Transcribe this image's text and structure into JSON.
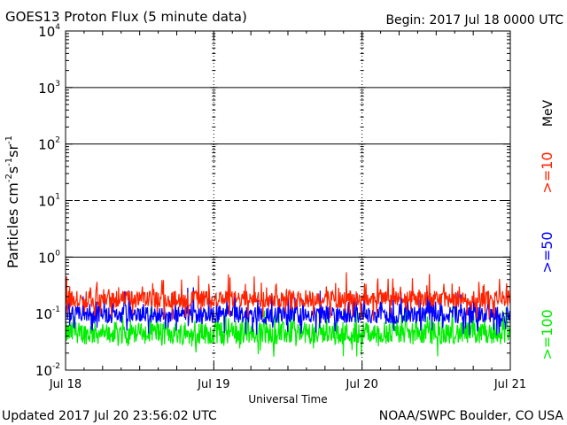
{
  "header": {
    "title": "GOES13 Proton Flux (5 minute data)",
    "begin": "Begin: 2017 Jul 18 0000 UTC"
  },
  "footer": {
    "updated": "Updated 2017 Jul 20 23:56:02 UTC",
    "source": "NOAA/SWPC Boulder, CO USA"
  },
  "chart_data": {
    "type": "line",
    "ylabel_parts": [
      "Particles cm",
      "-2",
      "s",
      "-1",
      "sr",
      "-1"
    ],
    "xlabel": "Universal Time",
    "y_scale": "log",
    "ylim": [
      0.01,
      10000
    ],
    "y_ticks": [
      {
        "value": 0.01,
        "base": "10",
        "exp": "-2"
      },
      {
        "value": 0.1,
        "base": "10",
        "exp": "-1"
      },
      {
        "value": 1,
        "base": "10",
        "exp": "0"
      },
      {
        "value": 10,
        "base": "10",
        "exp": "1"
      },
      {
        "value": 100,
        "base": "10",
        "exp": "2"
      },
      {
        "value": 1000,
        "base": "10",
        "exp": "3"
      },
      {
        "value": 10000,
        "base": "10",
        "exp": "4"
      }
    ],
    "x_ticks": [
      "Jul 18",
      "Jul 19",
      "Jul 20",
      "Jul 21"
    ],
    "xlim": [
      "2017-07-18 00:00",
      "2017-07-21 00:00"
    ],
    "units_label": "MeV",
    "threshold_lines": [
      {
        "value": 10,
        "style": "dashed"
      },
      {
        "value": 100,
        "style": "solid"
      },
      {
        "value": 1000,
        "style": "solid"
      }
    ],
    "series": [
      {
        "name": ">=10",
        "color": "#ff2200",
        "base": 0.18,
        "noise": 0.3,
        "spike_prob": 0.12
      },
      {
        "name": ">=50",
        "color": "#0000ff",
        "base": 0.095,
        "noise": 0.3,
        "spike_prob": 0.1
      },
      {
        "name": ">=100",
        "color": "#00ee00",
        "base": 0.045,
        "noise": 0.4,
        "spike_prob": 0.1
      }
    ]
  }
}
